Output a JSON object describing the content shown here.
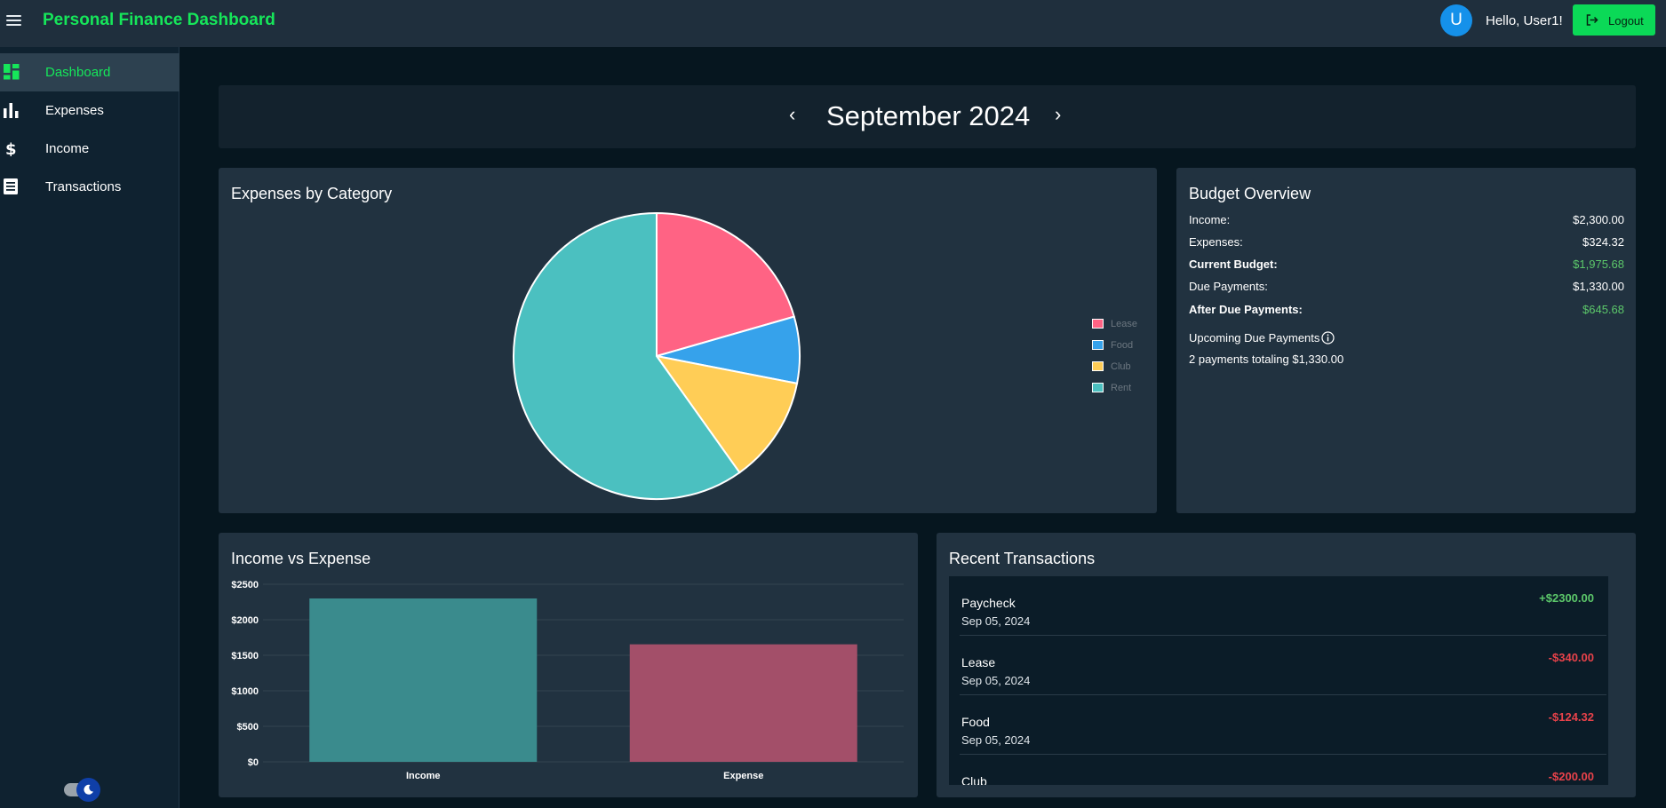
{
  "header": {
    "app_title": "Personal Finance Dashboard",
    "avatar_initial": "U",
    "greeting": "Hello, User1!",
    "logout_label": "Logout"
  },
  "sidebar": {
    "items": [
      {
        "label": "Dashboard",
        "icon": "dashboard-icon",
        "active": true
      },
      {
        "label": "Expenses",
        "icon": "bar-chart-icon",
        "active": false
      },
      {
        "label": "Income",
        "icon": "dollar-icon",
        "active": false
      },
      {
        "label": "Transactions",
        "icon": "list-icon",
        "active": false
      }
    ],
    "theme_toggle": {
      "icon": "moon-icon"
    }
  },
  "month_nav": {
    "prev": "‹",
    "label": "September 2024",
    "next": "›"
  },
  "expenses_card": {
    "title": "Expenses by Category"
  },
  "budget": {
    "title": "Budget Overview",
    "rows": [
      {
        "label": "Income:",
        "value": "$2,300.00",
        "bold": false,
        "green": false
      },
      {
        "label": "Expenses:",
        "value": "$324.32",
        "bold": false,
        "green": false
      },
      {
        "label": "Current Budget:",
        "value": "$1,975.68",
        "bold": true,
        "green": true
      },
      {
        "label": "Due Payments:",
        "value": "$1,330.00",
        "bold": false,
        "green": false
      },
      {
        "label": "After Due Payments:",
        "value": "$645.68",
        "bold": true,
        "green": true
      }
    ],
    "upcoming_title": "Upcoming Due Payments",
    "upcoming_text": "2 payments totaling $1,330.00"
  },
  "income_expense_card": {
    "title": "Income vs Expense"
  },
  "recent": {
    "title": "Recent Transactions",
    "items": [
      {
        "name": "Paycheck",
        "date": "Sep 05, 2024",
        "amount": "+$2300.00",
        "positive": true
      },
      {
        "name": "Lease",
        "date": "Sep 05, 2024",
        "amount": "-$340.00",
        "positive": false
      },
      {
        "name": "Food",
        "date": "Sep 05, 2024",
        "amount": "-$124.32",
        "positive": false
      },
      {
        "name": "Club",
        "date": "",
        "amount": "-$200.00",
        "positive": false
      }
    ]
  },
  "colors": {
    "accent": "#16e65a",
    "positive": "#5cc86a",
    "negative": "#e8424a",
    "lease": "#ff6384",
    "food": "#36a2eb",
    "club": "#ffcd56",
    "rent": "#4bc0c0"
  },
  "chart_data": [
    {
      "type": "pie",
      "title": "Expenses by Category",
      "categories": [
        "Lease",
        "Food",
        "Club",
        "Rent"
      ],
      "values": [
        340,
        124.32,
        200,
        990
      ],
      "colors": [
        "#ff6384",
        "#36a2eb",
        "#ffcd56",
        "#4bc0c0"
      ],
      "legend": "right"
    },
    {
      "type": "bar",
      "title": "Income vs Expense",
      "categories": [
        "Income",
        "Expense"
      ],
      "values": [
        2300,
        1654.32
      ],
      "colors": [
        "#3a8b8d",
        "#a34f69"
      ],
      "ylim": [
        0,
        2500
      ],
      "yticks": [
        0,
        500,
        1000,
        1500,
        2000,
        2500
      ],
      "ytick_labels": [
        "$0",
        "$500",
        "$1000",
        "$1500",
        "$2000",
        "$2500"
      ],
      "grid": true
    }
  ]
}
